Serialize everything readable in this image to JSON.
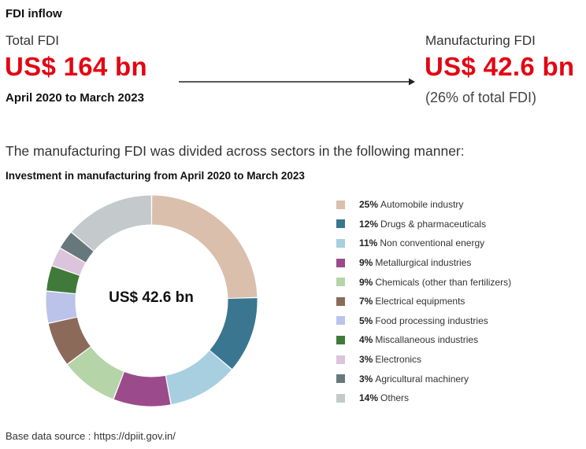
{
  "header": {
    "title": "FDI inflow"
  },
  "total": {
    "label": "Total FDI",
    "value": "US$ 164 bn",
    "period": "April 2020 to March 2023"
  },
  "manufacturing": {
    "label": "Manufacturing FDI",
    "value": "US$ 42.6 bn",
    "share": "(26% of total FDI)"
  },
  "intro_text": "The manufacturing FDI was divided across sectors in the following manner:",
  "source": "Base data source : https://dpiit.gov.in/",
  "chart_data": {
    "type": "pie",
    "title": "Investment in manufacturing from April 2020 to March 2023",
    "center_label": "US$ 42.6 bn",
    "legend_position": "right",
    "unit": "%",
    "slices": [
      {
        "pct": "25%",
        "label": "Automobile industry",
        "value": 25,
        "color": "#d9bfac"
      },
      {
        "pct": "12%",
        "label": "Drugs & pharmaceuticals",
        "value": 12,
        "color": "#3a7690"
      },
      {
        "pct": "11%",
        "label": "Non conventional energy",
        "value": 11,
        "color": "#a7cfdf"
      },
      {
        "pct": "9%",
        "label": "Metallurgical industries",
        "value": 9,
        "color": "#9b4b8c"
      },
      {
        "pct": "9%",
        "label": "Chemicals (other than fertilizers)",
        "value": 9,
        "color": "#b5d4a7"
      },
      {
        "pct": "7%",
        "label": "Electrical equipments",
        "value": 7,
        "color": "#8b6a5a"
      },
      {
        "pct": "5%",
        "label": "Food processing industries",
        "value": 5,
        "color": "#bcc3ea"
      },
      {
        "pct": "4%",
        "label": "Miscallaneous industries",
        "value": 4,
        "color": "#3f7a3a"
      },
      {
        "pct": "3%",
        "label": "Electronics",
        "value": 3,
        "color": "#dcc4dc"
      },
      {
        "pct": "3%",
        "label": "Agricultural machinery",
        "value": 3,
        "color": "#67787d"
      },
      {
        "pct": "14%",
        "label": "Others",
        "value": 14,
        "color": "#c4c9cb"
      }
    ]
  }
}
